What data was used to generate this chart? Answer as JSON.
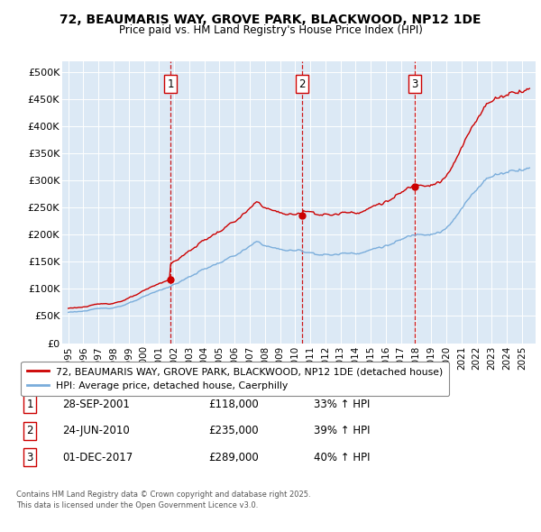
{
  "title": "72, BEAUMARIS WAY, GROVE PARK, BLACKWOOD, NP12 1DE",
  "subtitle": "Price paid vs. HM Land Registry's House Price Index (HPI)",
  "plot_bg_color": "#dce9f5",
  "ylim": [
    0,
    520000
  ],
  "yticks": [
    0,
    50000,
    100000,
    150000,
    200000,
    250000,
    300000,
    350000,
    400000,
    450000,
    500000
  ],
  "ytick_labels": [
    "£0",
    "£50K",
    "£100K",
    "£150K",
    "£200K",
    "£250K",
    "£300K",
    "£350K",
    "£400K",
    "£450K",
    "£500K"
  ],
  "sale_color": "#cc0000",
  "hpi_color": "#7aaddb",
  "vline_color": "#cc0000",
  "sales": [
    {
      "date_num": 2001.75,
      "price": 118000,
      "label": "1",
      "date_str": "28-SEP-2001",
      "pct": "33%"
    },
    {
      "date_num": 2010.48,
      "price": 235000,
      "label": "2",
      "date_str": "24-JUN-2010",
      "pct": "39%"
    },
    {
      "date_num": 2017.92,
      "price": 289000,
      "label": "3",
      "date_str": "01-DEC-2017",
      "pct": "40%"
    }
  ],
  "legend_sale_label": "72, BEAUMARIS WAY, GROVE PARK, BLACKWOOD, NP12 1DE (detached house)",
  "legend_hpi_label": "HPI: Average price, detached house, Caerphilly",
  "footer1": "Contains HM Land Registry data © Crown copyright and database right 2025.",
  "footer2": "This data is licensed under the Open Government Licence v3.0."
}
